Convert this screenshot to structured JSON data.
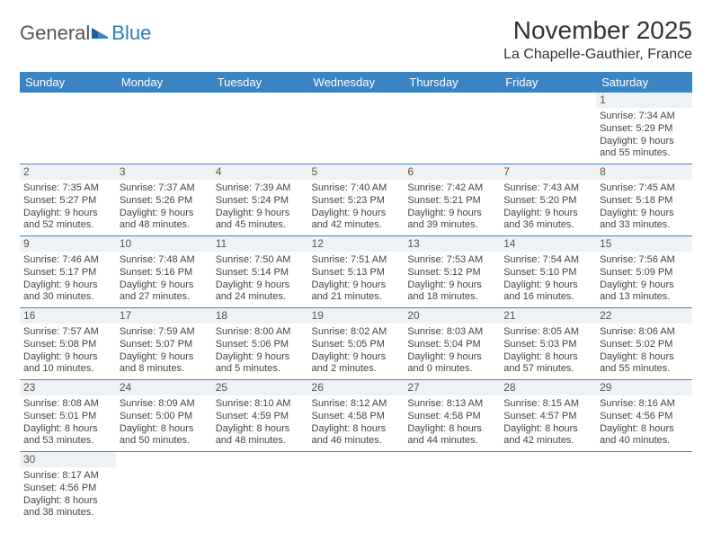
{
  "logo": {
    "text1": "General",
    "text2": "Blue"
  },
  "title": "November 2025",
  "location": "La Chapelle-Gauthier, France",
  "colors": {
    "header_bg": "#3b84c4",
    "header_text": "#ffffff",
    "daynum_bg": "#eef2f5",
    "row_border": "#3b84c4",
    "logo_accent": "#2f7bbf"
  },
  "weekdays": [
    "Sunday",
    "Monday",
    "Tuesday",
    "Wednesday",
    "Thursday",
    "Friday",
    "Saturday"
  ],
  "weeks": [
    [
      null,
      null,
      null,
      null,
      null,
      null,
      {
        "n": "1",
        "sr": "Sunrise: 7:34 AM",
        "ss": "Sunset: 5:29 PM",
        "dl": "Daylight: 9 hours and 55 minutes."
      }
    ],
    [
      {
        "n": "2",
        "sr": "Sunrise: 7:35 AM",
        "ss": "Sunset: 5:27 PM",
        "dl": "Daylight: 9 hours and 52 minutes."
      },
      {
        "n": "3",
        "sr": "Sunrise: 7:37 AM",
        "ss": "Sunset: 5:26 PM",
        "dl": "Daylight: 9 hours and 48 minutes."
      },
      {
        "n": "4",
        "sr": "Sunrise: 7:39 AM",
        "ss": "Sunset: 5:24 PM",
        "dl": "Daylight: 9 hours and 45 minutes."
      },
      {
        "n": "5",
        "sr": "Sunrise: 7:40 AM",
        "ss": "Sunset: 5:23 PM",
        "dl": "Daylight: 9 hours and 42 minutes."
      },
      {
        "n": "6",
        "sr": "Sunrise: 7:42 AM",
        "ss": "Sunset: 5:21 PM",
        "dl": "Daylight: 9 hours and 39 minutes."
      },
      {
        "n": "7",
        "sr": "Sunrise: 7:43 AM",
        "ss": "Sunset: 5:20 PM",
        "dl": "Daylight: 9 hours and 36 minutes."
      },
      {
        "n": "8",
        "sr": "Sunrise: 7:45 AM",
        "ss": "Sunset: 5:18 PM",
        "dl": "Daylight: 9 hours and 33 minutes."
      }
    ],
    [
      {
        "n": "9",
        "sr": "Sunrise: 7:46 AM",
        "ss": "Sunset: 5:17 PM",
        "dl": "Daylight: 9 hours and 30 minutes."
      },
      {
        "n": "10",
        "sr": "Sunrise: 7:48 AM",
        "ss": "Sunset: 5:16 PM",
        "dl": "Daylight: 9 hours and 27 minutes."
      },
      {
        "n": "11",
        "sr": "Sunrise: 7:50 AM",
        "ss": "Sunset: 5:14 PM",
        "dl": "Daylight: 9 hours and 24 minutes."
      },
      {
        "n": "12",
        "sr": "Sunrise: 7:51 AM",
        "ss": "Sunset: 5:13 PM",
        "dl": "Daylight: 9 hours and 21 minutes."
      },
      {
        "n": "13",
        "sr": "Sunrise: 7:53 AM",
        "ss": "Sunset: 5:12 PM",
        "dl": "Daylight: 9 hours and 18 minutes."
      },
      {
        "n": "14",
        "sr": "Sunrise: 7:54 AM",
        "ss": "Sunset: 5:10 PM",
        "dl": "Daylight: 9 hours and 16 minutes."
      },
      {
        "n": "15",
        "sr": "Sunrise: 7:56 AM",
        "ss": "Sunset: 5:09 PM",
        "dl": "Daylight: 9 hours and 13 minutes."
      }
    ],
    [
      {
        "n": "16",
        "sr": "Sunrise: 7:57 AM",
        "ss": "Sunset: 5:08 PM",
        "dl": "Daylight: 9 hours and 10 minutes."
      },
      {
        "n": "17",
        "sr": "Sunrise: 7:59 AM",
        "ss": "Sunset: 5:07 PM",
        "dl": "Daylight: 9 hours and 8 minutes."
      },
      {
        "n": "18",
        "sr": "Sunrise: 8:00 AM",
        "ss": "Sunset: 5:06 PM",
        "dl": "Daylight: 9 hours and 5 minutes."
      },
      {
        "n": "19",
        "sr": "Sunrise: 8:02 AM",
        "ss": "Sunset: 5:05 PM",
        "dl": "Daylight: 9 hours and 2 minutes."
      },
      {
        "n": "20",
        "sr": "Sunrise: 8:03 AM",
        "ss": "Sunset: 5:04 PM",
        "dl": "Daylight: 9 hours and 0 minutes."
      },
      {
        "n": "21",
        "sr": "Sunrise: 8:05 AM",
        "ss": "Sunset: 5:03 PM",
        "dl": "Daylight: 8 hours and 57 minutes."
      },
      {
        "n": "22",
        "sr": "Sunrise: 8:06 AM",
        "ss": "Sunset: 5:02 PM",
        "dl": "Daylight: 8 hours and 55 minutes."
      }
    ],
    [
      {
        "n": "23",
        "sr": "Sunrise: 8:08 AM",
        "ss": "Sunset: 5:01 PM",
        "dl": "Daylight: 8 hours and 53 minutes."
      },
      {
        "n": "24",
        "sr": "Sunrise: 8:09 AM",
        "ss": "Sunset: 5:00 PM",
        "dl": "Daylight: 8 hours and 50 minutes."
      },
      {
        "n": "25",
        "sr": "Sunrise: 8:10 AM",
        "ss": "Sunset: 4:59 PM",
        "dl": "Daylight: 8 hours and 48 minutes."
      },
      {
        "n": "26",
        "sr": "Sunrise: 8:12 AM",
        "ss": "Sunset: 4:58 PM",
        "dl": "Daylight: 8 hours and 46 minutes."
      },
      {
        "n": "27",
        "sr": "Sunrise: 8:13 AM",
        "ss": "Sunset: 4:58 PM",
        "dl": "Daylight: 8 hours and 44 minutes."
      },
      {
        "n": "28",
        "sr": "Sunrise: 8:15 AM",
        "ss": "Sunset: 4:57 PM",
        "dl": "Daylight: 8 hours and 42 minutes."
      },
      {
        "n": "29",
        "sr": "Sunrise: 8:16 AM",
        "ss": "Sunset: 4:56 PM",
        "dl": "Daylight: 8 hours and 40 minutes."
      }
    ],
    [
      {
        "n": "30",
        "sr": "Sunrise: 8:17 AM",
        "ss": "Sunset: 4:56 PM",
        "dl": "Daylight: 8 hours and 38 minutes."
      },
      null,
      null,
      null,
      null,
      null,
      null
    ]
  ]
}
